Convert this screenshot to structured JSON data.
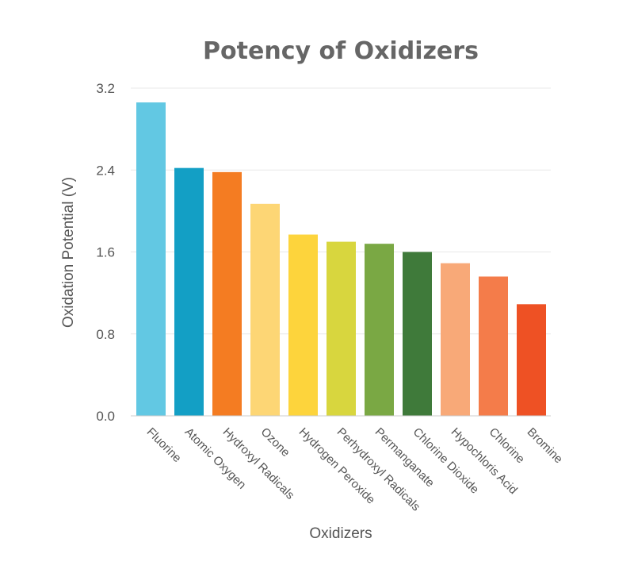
{
  "chart_data": {
    "type": "bar",
    "title": "Potency of Oxidizers",
    "xlabel": "Oxidizers",
    "ylabel": "Oxidation Potential (V)",
    "ylim": [
      0,
      3.2
    ],
    "yticks": [
      "0.0",
      "0.8",
      "1.6",
      "2.4",
      "3.2"
    ],
    "grid": true,
    "legend": "none",
    "categories": [
      "Fluorine",
      "Atomic Oxygen",
      "Hydroxyl Radicals",
      "Ozone",
      "Hydrogen Peroxide",
      "Perhydroxyl Radicals",
      "Permanganate",
      "Chlorine Dioxide",
      "Hypochloris Acid",
      "Chlorine",
      "Bromine"
    ],
    "values": [
      3.06,
      2.42,
      2.38,
      2.07,
      1.77,
      1.7,
      1.68,
      1.6,
      1.49,
      1.36,
      1.09
    ],
    "colors": [
      "#62c8e3",
      "#139fc5",
      "#f47c22",
      "#fdd675",
      "#fdd43c",
      "#d8d63e",
      "#7aa844",
      "#3f7a3a",
      "#f8a978",
      "#f47c4a",
      "#ee5124"
    ]
  }
}
